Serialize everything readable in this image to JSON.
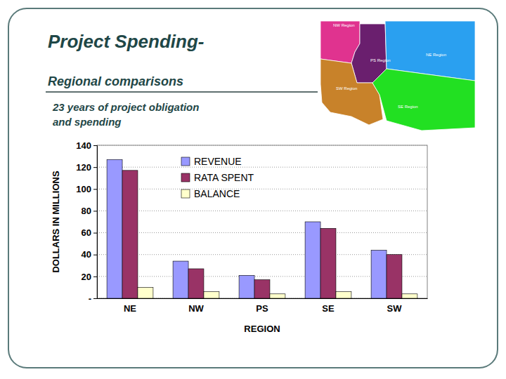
{
  "chart_data": {
    "type": "bar",
    "title": "Project Spending-",
    "subtitle": "Regional comparisons",
    "annotations": [
      "23 years of project obligation",
      "and spending"
    ],
    "x_label": "REGION",
    "y_label": "DOLLARS IN MILLIONS",
    "categories": [
      "NE",
      "NW",
      "PS",
      "SE",
      "SW"
    ],
    "series": [
      {
        "name": "REVENUE",
        "color": "#9999ff",
        "values": [
          127,
          34,
          21,
          70,
          44
        ]
      },
      {
        "name": "RATA SPENT",
        "color": "#993366",
        "values": [
          117,
          27,
          17,
          64,
          40
        ]
      },
      {
        "name": "BALANCE",
        "color": "#ffffcc",
        "values": [
          10,
          6,
          4,
          6,
          4
        ]
      }
    ],
    "ylim": [
      0,
      140
    ],
    "yticks": [
      {
        "value": 0,
        "label": "-"
      },
      20,
      40,
      60,
      80,
      100,
      120,
      140
    ],
    "grid": true,
    "legend": "top"
  },
  "map": {
    "labels": [
      "NW Region",
      "PS Region",
      "NE Region",
      "SW Region",
      "SE Region"
    ]
  }
}
